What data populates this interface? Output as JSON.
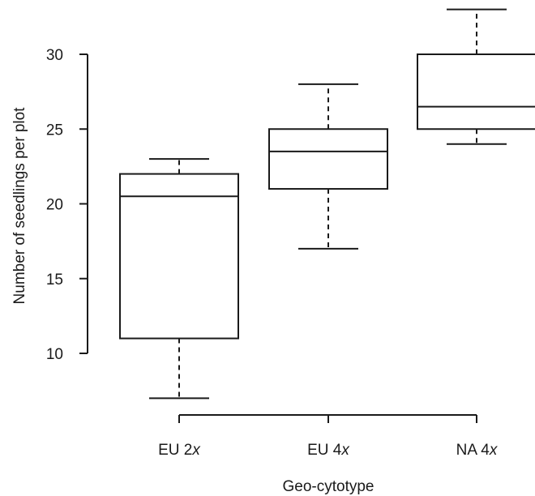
{
  "chart_data": {
    "type": "boxplot",
    "xlabel": "Geo-cytotype",
    "ylabel": "Number of seedlings per plot",
    "yticks": [
      10,
      15,
      20,
      25,
      30
    ],
    "ylim": [
      10,
      30
    ],
    "grid": false,
    "categories": [
      {
        "name": "EU 2",
        "suffix": "x",
        "min": 7,
        "q1": 11,
        "median": 20.5,
        "q3": 22,
        "max": 23
      },
      {
        "name": "EU 4",
        "suffix": "x",
        "min": 17,
        "q1": 21,
        "median": 23.5,
        "q3": 25,
        "max": 28
      },
      {
        "name": "NA 4",
        "suffix": "x",
        "min": 24,
        "q1": 25,
        "median": 26.5,
        "q3": 30,
        "max": 33
      }
    ]
  }
}
